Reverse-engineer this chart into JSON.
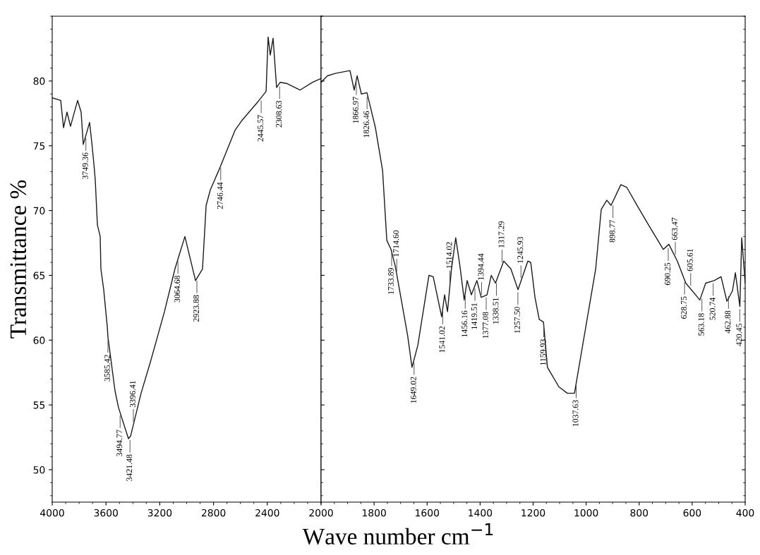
{
  "chart_data": [
    {
      "type": "line",
      "ylabel": "Transmittance %",
      "xlabel": "Wave number cm$^{−1}$",
      "xlim": [
        4000,
        2000
      ],
      "xticks": [
        4000,
        3600,
        3200,
        2800,
        2400
      ],
      "ylim": [
        47.5,
        85
      ],
      "yticks": [
        50,
        55,
        60,
        65,
        70,
        75,
        80
      ],
      "grid": false,
      "marker": "none",
      "line_style": "solid",
      "series": [
        {
          "color": "#1a1a1a",
          "x": [
            4000,
            3937,
            3916,
            3890,
            3864,
            3811,
            3785,
            3769,
            3722,
            3706,
            3690,
            3680,
            3664,
            3643,
            3638,
            3617,
            3591,
            3585,
            3533,
            3507,
            3433,
            3417,
            3339,
            3270,
            3165,
            3087,
            3013,
            2934,
            2882,
            2855,
            2824,
            2761,
            2640,
            2593,
            2462,
            2409,
            2394,
            2378,
            2357,
            2331,
            2304,
            2252,
            2157,
            2063,
            2000
          ],
          "values": [
            78.7,
            78.5,
            76.4,
            77.6,
            76.5,
            78.5,
            77.6,
            75.1,
            76.8,
            75.3,
            73.6,
            72.4,
            68.9,
            68,
            65.5,
            63.9,
            61.1,
            60.2,
            56.1,
            54.8,
            52.4,
            52.6,
            55.9,
            58.3,
            62.2,
            65.5,
            68,
            64.6,
            65.5,
            70.4,
            71.6,
            73.1,
            76.2,
            76.9,
            78.5,
            79.2,
            83.4,
            82,
            83.3,
            79.5,
            79.9,
            79.8,
            79.3,
            79.9,
            80.2
          ]
        }
      ],
      "annotations": [
        {
          "text": "3749.36",
          "x": 3749.36,
          "y": 75.8
        },
        {
          "text": "3585.42",
          "x": 3585.42,
          "y": 60.2
        },
        {
          "text": "3494.77",
          "x": 3494.77,
          "y": 54.4
        },
        {
          "text": "3421.48",
          "x": 3421.48,
          "y": 52.5
        },
        {
          "text": "3396.41",
          "x": 3396.41,
          "y": 53.5
        },
        {
          "text": "3064.68",
          "x": 3064.68,
          "y": 66.3
        },
        {
          "text": "2923.88",
          "x": 2923.88,
          "y": 64.8
        },
        {
          "text": "2746.44",
          "x": 2746.44,
          "y": 73.5
        },
        {
          "text": "2445.57",
          "x": 2445.57,
          "y": 78.7
        },
        {
          "text": "2308.63",
          "x": 2308.63,
          "y": 79.8
        }
      ]
    },
    {
      "type": "line",
      "xlim": [
        2000,
        400
      ],
      "xticks": [
        2000,
        1800,
        1600,
        1400,
        1200,
        1000,
        800,
        600,
        400
      ],
      "ylim": [
        47.5,
        85
      ],
      "yticks": [
        50,
        55,
        60,
        65,
        70,
        75,
        80
      ],
      "tick_labels": "x",
      "grid": false,
      "marker": "none",
      "line_style": "solid",
      "series": [
        {
          "color": "#1a1a1a",
          "x": [
            2000,
            1976,
            1944,
            1891,
            1875,
            1864,
            1848,
            1827,
            1795,
            1768,
            1752,
            1736,
            1720,
            1699,
            1673,
            1657,
            1635,
            1593,
            1577,
            1545,
            1534,
            1523,
            1508,
            1492,
            1476,
            1460,
            1449,
            1433,
            1412,
            1396,
            1374,
            1358,
            1342,
            1311,
            1284,
            1257,
            1220,
            1209,
            1193,
            1177,
            1161,
            1146,
            1103,
            1071,
            1044,
            964,
            943,
            922,
            906,
            869,
            847,
            805,
            762,
            709,
            688,
            656,
            624,
            571,
            549,
            517,
            491,
            469,
            448,
            437,
            420,
            413,
            400
          ],
          "values": [
            79.9,
            80.4,
            80.6,
            80.8,
            79.3,
            80.4,
            79,
            79.1,
            76.4,
            73.1,
            67.7,
            67,
            65.7,
            63.3,
            60.3,
            57.9,
            59.6,
            65,
            64.9,
            61.8,
            63.5,
            62.2,
            65.5,
            67.9,
            65.7,
            63.1,
            64.6,
            63.5,
            64.6,
            63.3,
            63.5,
            65,
            64.4,
            66.1,
            65.5,
            63.9,
            66.1,
            66,
            63.3,
            61.6,
            61.4,
            57.9,
            56.4,
            55.9,
            55.9,
            65.5,
            70.1,
            70.8,
            70.4,
            72,
            71.8,
            70.3,
            68.8,
            67,
            67.4,
            66.1,
            64.4,
            63.1,
            64.4,
            64.6,
            64.9,
            63,
            63.8,
            65.2,
            62.6,
            67.9,
            64.4
          ]
        }
      ],
      "annotations": [
        {
          "text": "1866.97",
          "x": 1866.97,
          "y": 80.1
        },
        {
          "text": "1826.46",
          "x": 1826.46,
          "y": 79
        },
        {
          "text": "1733.89",
          "x": 1733.89,
          "y": 66.9
        },
        {
          "text": "1714.60",
          "x": 1714.6,
          "y": 65.1
        },
        {
          "text": "1649.02",
          "x": 1649.02,
          "y": 58.5
        },
        {
          "text": "1541.02",
          "x": 1541.02,
          "y": 62.4
        },
        {
          "text": "1514.02",
          "x": 1514.02,
          "y": 64.2
        },
        {
          "text": "1456.16",
          "x": 1456.16,
          "y": 63.6
        },
        {
          "text": "1419.51",
          "x": 1419.51,
          "y": 64.2
        },
        {
          "text": "1394.44",
          "x": 1394.44,
          "y": 63.3
        },
        {
          "text": "1377.08",
          "x": 1377.08,
          "y": 63.5
        },
        {
          "text": "1338.51",
          "x": 1338.51,
          "y": 64.6
        },
        {
          "text": "1317.29",
          "x": 1317.29,
          "y": 65.8
        },
        {
          "text": "1257.50",
          "x": 1257.5,
          "y": 63.9
        },
        {
          "text": "1245.93",
          "x": 1245.93,
          "y": 64.6
        },
        {
          "text": "1159.93",
          "x": 1159.93,
          "y": 61.4
        },
        {
          "text": "1037.63",
          "x": 1037.63,
          "y": 56.7
        },
        {
          "text": "898.77",
          "x": 898.77,
          "y": 70.6
        },
        {
          "text": "690.25",
          "x": 690.25,
          "y": 67.3
        },
        {
          "text": "663.47",
          "x": 663.47,
          "y": 66.4
        },
        {
          "text": "628.75",
          "x": 628.75,
          "y": 64.7
        },
        {
          "text": "605.61",
          "x": 605.61,
          "y": 64
        },
        {
          "text": "563.18",
          "x": 563.18,
          "y": 63.4
        },
        {
          "text": "520.74",
          "x": 520.74,
          "y": 64.6
        },
        {
          "text": "462.88",
          "x": 462.88,
          "y": 63.6
        },
        {
          "text": "420.45",
          "x": 420.45,
          "y": 62.6
        }
      ]
    }
  ]
}
